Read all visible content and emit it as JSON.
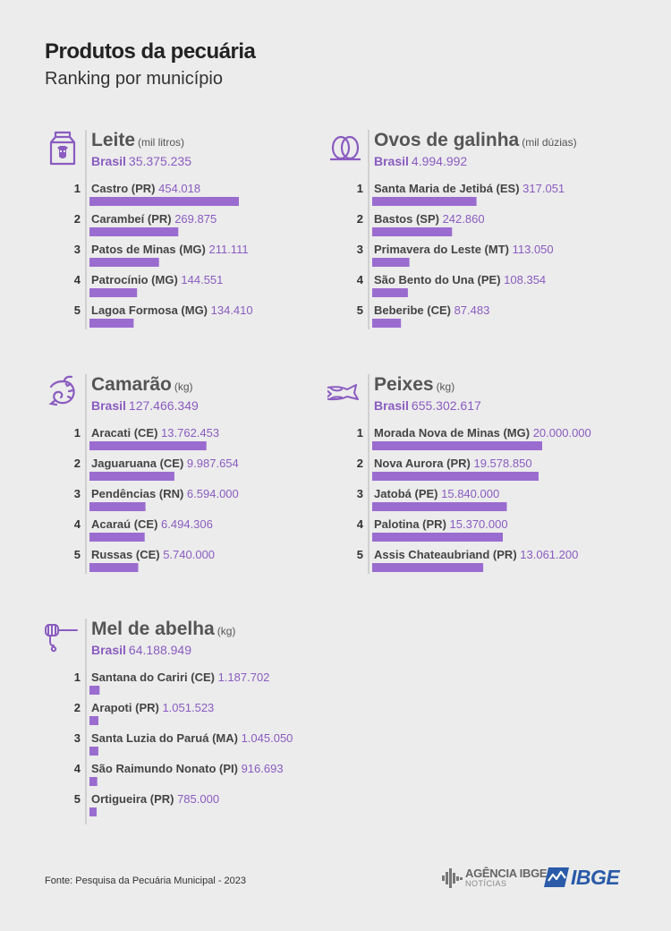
{
  "header": {
    "title": "Produtos da pecuária",
    "subtitle": "Ranking por município"
  },
  "colors": {
    "bar": "#9b6ccf",
    "accent": "#8a5cc0"
  },
  "chart_data": [
    {
      "type": "bar",
      "title": "Leite",
      "unit": "(mil litros)",
      "total_label": "Brasil",
      "total": "35.375.235",
      "icon": "milk-carton-icon",
      "categories": [
        "Castro (PR)",
        "Carambeí (PR)",
        "Patos de Minas (MG)",
        "Patrocínio (MG)",
        "Lagoa Formosa (MG)"
      ],
      "value_labels": [
        "454.018",
        "269.875",
        "211.111",
        "144.551",
        "134.410"
      ],
      "values": [
        454018,
        269875,
        211111,
        144551,
        134410
      ]
    },
    {
      "type": "bar",
      "title": "Ovos de galinha",
      "unit": "(mil dúzias)",
      "total_label": "Brasil",
      "total": "4.994.992",
      "icon": "eggs-icon",
      "categories": [
        "Santa Maria de Jetibá (ES)",
        "Bastos (SP)",
        "Primavera do Leste (MT)",
        "São Bento do Una (PE)",
        "Beberibe (CE)"
      ],
      "value_labels": [
        "317.051",
        "242.860",
        "113.050",
        "108.354",
        "87.483"
      ],
      "values": [
        317051,
        242860,
        113050,
        108354,
        87483
      ]
    },
    {
      "type": "bar",
      "title": "Camarão",
      "unit": "(kg)",
      "total_label": "Brasil",
      "total": "127.466.349",
      "icon": "shrimp-icon",
      "categories": [
        "Aracati (CE)",
        "Jaguaruana (CE)",
        "Pendências (RN)",
        "Acaraú (CE)",
        "Russas (CE)"
      ],
      "value_labels": [
        "13.762.453",
        "9.987.654",
        "6.594.000",
        "6.494.306",
        "5.740.000"
      ],
      "values": [
        13762453,
        9987654,
        6594000,
        6494306,
        5740000
      ]
    },
    {
      "type": "bar",
      "title": "Peixes",
      "unit": "(kg)",
      "total_label": "Brasil",
      "total": "655.302.617",
      "icon": "fish-icon",
      "categories": [
        "Morada Nova de Minas (MG)",
        "Nova Aurora (PR)",
        "Jatobá (PE)",
        "Palotina (PR)",
        "Assis Chateaubriand (PR)"
      ],
      "value_labels": [
        "20.000.000",
        "19.578.850",
        "15.840.000",
        "15.370.000",
        "13.061.200"
      ],
      "values": [
        20000000,
        19578850,
        15840000,
        15370000,
        13061200
      ]
    },
    {
      "type": "bar",
      "title": "Mel de abelha",
      "unit": "(kg)",
      "total_label": "Brasil",
      "total": "64.188.949",
      "icon": "honey-dipper-icon",
      "categories": [
        "Santana do Cariri (CE)",
        "Arapoti (PR)",
        "Santa Luzia do Paruá (MA)",
        "São Raimundo Nonato (PI)",
        "Ortigueira (PR)"
      ],
      "value_labels": [
        "1.187.702",
        "1.051.523",
        "1.045.050",
        "916.693",
        "785.000"
      ],
      "values": [
        1187702,
        1051523,
        1045050,
        916693,
        785000
      ]
    }
  ],
  "footer": {
    "source": "Fonte: Pesquisa da Pecuária Municipal - 2023",
    "agencia_line1": "AGÊNCIA IBGE",
    "agencia_line2": "NOTÍCIAS",
    "ibge": "IBGE"
  }
}
